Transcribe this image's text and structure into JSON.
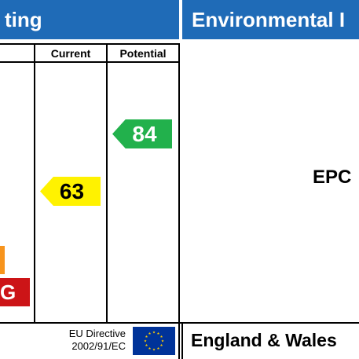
{
  "left_panel": {
    "title_partial": "ting",
    "columns": {
      "current_label": "Current",
      "potential_label": "Potential"
    },
    "current_rating": {
      "value": "63",
      "color": "#fff200"
    },
    "potential_rating": {
      "value": "84",
      "color": "#22b14c"
    },
    "bands": [
      {
        "letter": "",
        "color": "#f7941d"
      },
      {
        "letter": "G",
        "color": "#cc1417"
      }
    ],
    "footer": {
      "directive_line1": "EU Directive",
      "directive_line2": "2002/91/EC"
    }
  },
  "right_panel": {
    "title_partial": "Environmental I",
    "center_text_partial": "EPC",
    "footer_text": "England & Wales"
  },
  "colors": {
    "banner": "#1f6bb7",
    "eu_flag": "#003399",
    "eu_stars": "#ffcc00"
  }
}
